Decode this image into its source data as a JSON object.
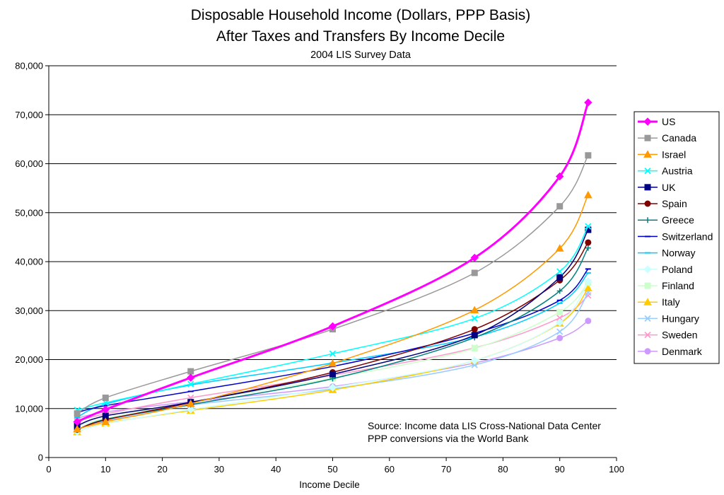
{
  "chart_data": {
    "type": "line",
    "title_line1": "Disposable Household Income (Dollars, PPP Basis)",
    "title_line2": "After Taxes and Transfers By Income Decile",
    "subtitle": "2004 LIS Survey Data",
    "xlabel": "Income Decile",
    "ylabel": "",
    "xlim": [
      0,
      100
    ],
    "ylim": [
      0,
      80000
    ],
    "x_ticks": [
      "0",
      "10",
      "20",
      "30",
      "40",
      "50",
      "60",
      "70",
      "80",
      "90",
      "100"
    ],
    "y_ticks": [
      "0",
      "10,000",
      "20,000",
      "30,000",
      "40,000",
      "50,000",
      "60,000",
      "70,000",
      "80,000"
    ],
    "grid": "horizontal",
    "legend_position": "right",
    "x": [
      5,
      10,
      25,
      50,
      75,
      90,
      95
    ],
    "series": [
      {
        "name": "US",
        "color": "#FF00FF",
        "marker": "diamond",
        "width": 3,
        "values": [
          7300,
          9800,
          16300,
          26800,
          40800,
          57400,
          72500
        ]
      },
      {
        "name": "Canada",
        "color": "#999999",
        "marker": "square",
        "width": 1.5,
        "values": [
          9000,
          12200,
          17600,
          26200,
          37700,
          51300,
          61700
        ]
      },
      {
        "name": "Israel",
        "color": "#FF9900",
        "marker": "triangle",
        "width": 1.5,
        "values": [
          5800,
          7300,
          11000,
          19200,
          30100,
          42700,
          53600
        ]
      },
      {
        "name": "Austria",
        "color": "#00FFFF",
        "marker": "x",
        "width": 1.5,
        "values": [
          9700,
          11200,
          15000,
          21200,
          28400,
          38000,
          47200
        ]
      },
      {
        "name": "UK",
        "color": "#000080",
        "marker": "square",
        "width": 1.5,
        "values": [
          6500,
          8500,
          11300,
          17000,
          25000,
          36800,
          46500
        ]
      },
      {
        "name": "Spain",
        "color": "#800000",
        "marker": "circle",
        "width": 1.5,
        "values": [
          5700,
          7700,
          11200,
          17400,
          26200,
          36200,
          43900
        ]
      },
      {
        "name": "Greece",
        "color": "#008080",
        "marker": "plus",
        "width": 1.5,
        "values": [
          5600,
          7800,
          10800,
          16100,
          24500,
          34000,
          42800
        ]
      },
      {
        "name": "Switzerland",
        "color": "#0000CC",
        "marker": "dash",
        "width": 1.5,
        "values": [
          9200,
          10600,
          13500,
          18600,
          25400,
          32100,
          38500
        ]
      },
      {
        "name": "Norway",
        "color": "#00CCFF",
        "marker": "dash",
        "width": 1.5,
        "values": [
          8200,
          10900,
          14800,
          19300,
          24600,
          31500,
          37700
        ]
      },
      {
        "name": "Poland",
        "color": "#CCFFFF",
        "marker": "diamond",
        "width": 1.5,
        "values": [
          5300,
          6900,
          9800,
          14300,
          19800,
          27600,
          36000
        ]
      },
      {
        "name": "Finland",
        "color": "#CCFFCC",
        "marker": "square",
        "width": 1.5,
        "values": [
          6400,
          8000,
          11300,
          16200,
          22300,
          29700,
          35700
        ]
      },
      {
        "name": "Italy",
        "color": "#FFCC00",
        "marker": "triangle",
        "width": 1.5,
        "values": [
          5200,
          7000,
          9600,
          13800,
          19800,
          27400,
          34600
        ]
      },
      {
        "name": "Hungary",
        "color": "#99CCFF",
        "marker": "x",
        "width": 1.5,
        "values": [
          5700,
          7500,
          10700,
          14000,
          18900,
          25700,
          33700
        ]
      },
      {
        "name": "Sweden",
        "color": "#FF99CC",
        "marker": "x",
        "width": 1.5,
        "values": [
          7500,
          8900,
          12200,
          16800,
          22400,
          28500,
          33100
        ]
      },
      {
        "name": "Denmark",
        "color": "#CC99FF",
        "marker": "circle",
        "width": 1.5,
        "values": [
          8000,
          9300,
          11400,
          14500,
          19300,
          24400,
          27900
        ]
      }
    ],
    "annotation": [
      "Source:  Income data LIS Cross-National Data Center",
      "PPP conversions via the World Bank"
    ]
  }
}
